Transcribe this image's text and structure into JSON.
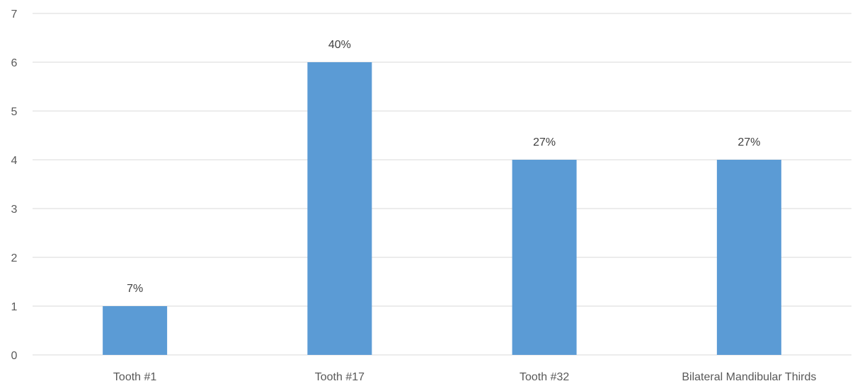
{
  "chart_data": {
    "type": "bar",
    "title": "",
    "xlabel": "",
    "ylabel": "",
    "categories": [
      "Tooth #1",
      "Tooth #17",
      "Tooth #32",
      "Bilateral Mandibular Thirds"
    ],
    "values": [
      1,
      6,
      4,
      4
    ],
    "data_labels": [
      "7%",
      "40%",
      "27%",
      "27%"
    ],
    "ylim": [
      0,
      7
    ],
    "yticks": [
      0,
      1,
      2,
      3,
      4,
      5,
      6,
      7
    ],
    "grid": true,
    "legend": "none",
    "bar_color": "#5b9bd5"
  }
}
